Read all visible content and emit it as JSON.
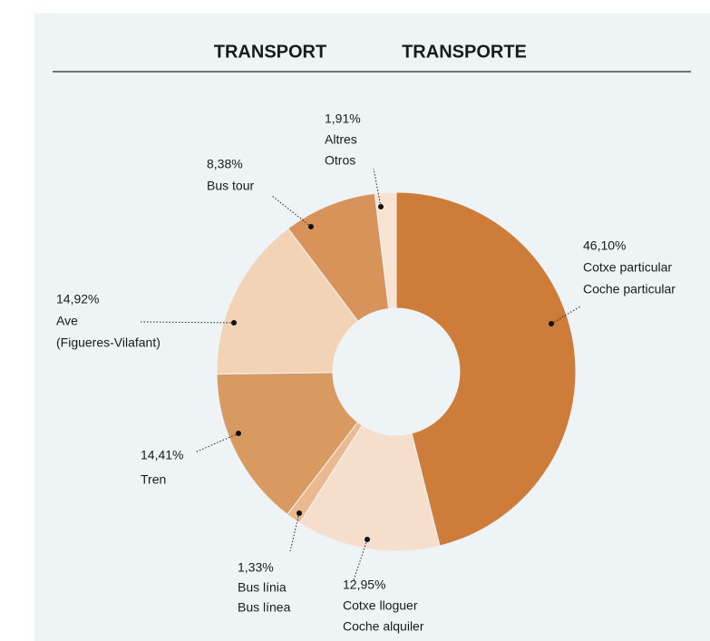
{
  "chart_data": {
    "type": "donut",
    "title": [
      "TRANSPORT",
      "TRANSPORTE"
    ],
    "categories": [
      [
        "Cotxe particular",
        "Coche particular"
      ],
      [
        "Cotxe lloguer",
        "Coche alquiler"
      ],
      [
        "Bus línia",
        "Bus línea"
      ],
      [
        "Tren"
      ],
      [
        "Ave",
        "(Figueres-Vilafant)"
      ],
      [
        "Bus tour"
      ],
      [
        "Altres",
        "Otros"
      ]
    ],
    "values": [
      46.1,
      12.95,
      1.33,
      14.41,
      14.92,
      8.38,
      1.91
    ],
    "value_labels": [
      "46,10%",
      "12,95%",
      "1,33%",
      "14,41%",
      "14,92%",
      "8,38%",
      "1,91%"
    ],
    "colors": [
      "#cd7c39",
      "#f5dfcc",
      "#ebb98f",
      "#d99a62",
      "#f2d3b6",
      "#d8935a",
      "#f8e3d3"
    ]
  }
}
